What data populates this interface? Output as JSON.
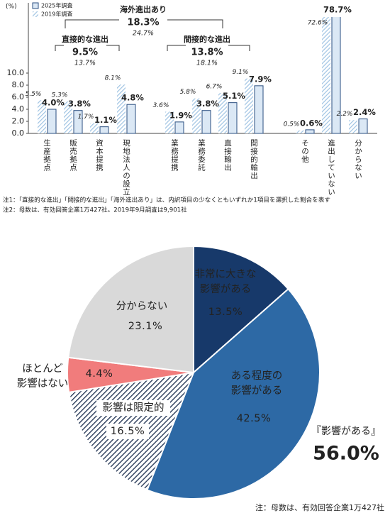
{
  "chart_data": [
    {
      "type": "bar",
      "y_unit_label": "(%)",
      "categories": [
        "生産拠点",
        "販売拠点",
        "資本提携",
        "現地法人の設立",
        "業務提携",
        "業務委託",
        "直接輸出",
        "間接的輸出",
        "その他",
        "進出していない",
        "分からない"
      ],
      "series": [
        {
          "name": "2025年調査",
          "color": "#2a4e80",
          "fill": "#dbe8f5",
          "pattern": "solid",
          "values": [
            4.0,
            3.8,
            1.1,
            4.8,
            1.9,
            3.8,
            5.1,
            7.9,
            0.6,
            78.7,
            2.4
          ],
          "value_labels": [
            "4.0%",
            "3.8%",
            "1.1%",
            "4.8%",
            "1.9%",
            "3.8%",
            "5.1%",
            "7.9%",
            "0.6%",
            "78.7%",
            "2.4%"
          ]
        },
        {
          "name": "2019年調査",
          "color": "#9fc3e3",
          "fill": "#ffffff",
          "pattern": "hatched",
          "values": [
            5.5,
            5.3,
            1.7,
            8.1,
            3.6,
            5.8,
            6.7,
            9.1,
            0.5,
            72.6,
            2.2
          ],
          "value_labels": [
            "5.5%",
            "5.3%",
            "1.7%",
            "8.1%",
            "3.6%",
            "5.8%",
            "6.7%",
            "9.1%",
            "0.5%",
            "72.6%",
            "2.2%"
          ]
        }
      ],
      "ylim": [
        0,
        10
      ],
      "yticks": [
        {
          "value": 0,
          "label": "0.0"
        },
        {
          "value": 2,
          "label": "2.0"
        },
        {
          "value": 4,
          "label": "4.0"
        },
        {
          "value": 6,
          "label": "6.0"
        },
        {
          "value": 8,
          "label": "8.0"
        },
        {
          "value": 10,
          "label": "10.0"
        }
      ],
      "annotations": [
        {
          "text": "海外進出あり",
          "values": [
            18.3,
            24.7
          ],
          "value_labels": [
            "18.3%",
            "24.7%"
          ]
        },
        {
          "text": "直接的な進出",
          "values": [
            9.5,
            13.7
          ],
          "value_labels": [
            "9.5%",
            "13.7%"
          ]
        },
        {
          "text": "間接的な進出",
          "values": [
            13.8,
            18.1
          ],
          "value_labels": [
            "13.8%",
            "18.1%"
          ]
        }
      ],
      "notes": [
        "注1：「直接的な進出」「間接的な進出」「海外進出あり」は、内訳項目の少なくともいずれか1項目を選択した割合を表す",
        "注2：母数は、有効回答企業1万427社。2019年9月調査は9,901社"
      ]
    },
    {
      "type": "pie",
      "categories": [
        "非常に大きな影響がある",
        "ある程度の影響がある",
        "影響は限定的",
        "ほとんど影響はない",
        "分からない"
      ],
      "values": [
        13.5,
        42.5,
        16.5,
        4.4,
        23.1
      ],
      "value_labels": [
        "13.5%",
        "42.5%",
        "16.5%",
        "4.4%",
        "23.1%"
      ],
      "colors": [
        "#17396a",
        "#2d69a5",
        "hatched",
        "#f17c7c",
        "#d9d9d9"
      ],
      "annotation": {
        "text": "『影響がある』",
        "value": 56.0,
        "value_label": "56.0%"
      },
      "note": "注：母数は、有効回答企業1万427社"
    }
  ]
}
